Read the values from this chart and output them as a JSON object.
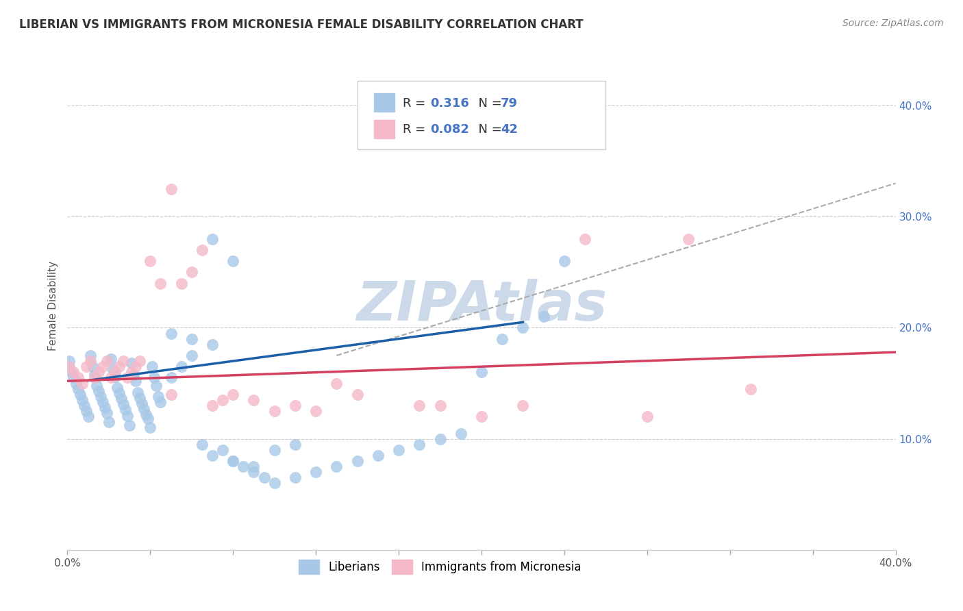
{
  "title": "LIBERIAN VS IMMIGRANTS FROM MICRONESIA FEMALE DISABILITY CORRELATION CHART",
  "source": "Source: ZipAtlas.com",
  "ylabel": "Female Disability",
  "xlim": [
    0.0,
    0.4
  ],
  "ylim": [
    0.0,
    0.44
  ],
  "yticks_right": [
    0.1,
    0.2,
    0.3,
    0.4
  ],
  "ytick_labels_right": [
    "10.0%",
    "20.0%",
    "30.0%",
    "40.0%"
  ],
  "liberians": {
    "name": "Liberians",
    "R": 0.316,
    "N": 79,
    "color": "#a8c8e8",
    "line_color": "#1a5fa8",
    "x": [
      0.001,
      0.002,
      0.003,
      0.004,
      0.005,
      0.006,
      0.007,
      0.008,
      0.009,
      0.01,
      0.011,
      0.012,
      0.013,
      0.014,
      0.015,
      0.016,
      0.017,
      0.018,
      0.019,
      0.02,
      0.021,
      0.022,
      0.023,
      0.024,
      0.025,
      0.026,
      0.027,
      0.028,
      0.029,
      0.03,
      0.031,
      0.032,
      0.033,
      0.034,
      0.035,
      0.036,
      0.037,
      0.038,
      0.039,
      0.04,
      0.041,
      0.042,
      0.043,
      0.044,
      0.045,
      0.05,
      0.055,
      0.06,
      0.065,
      0.07,
      0.075,
      0.08,
      0.085,
      0.09,
      0.095,
      0.1,
      0.11,
      0.12,
      0.13,
      0.14,
      0.15,
      0.16,
      0.17,
      0.18,
      0.19,
      0.2,
      0.21,
      0.22,
      0.23,
      0.24,
      0.05,
      0.06,
      0.07,
      0.08,
      0.09,
      0.1,
      0.11,
      0.07,
      0.08
    ],
    "y": [
      0.17,
      0.16,
      0.155,
      0.15,
      0.145,
      0.14,
      0.135,
      0.13,
      0.125,
      0.12,
      0.175,
      0.165,
      0.158,
      0.148,
      0.143,
      0.138,
      0.133,
      0.128,
      0.123,
      0.115,
      0.172,
      0.162,
      0.156,
      0.146,
      0.141,
      0.136,
      0.131,
      0.126,
      0.121,
      0.112,
      0.168,
      0.158,
      0.152,
      0.142,
      0.137,
      0.132,
      0.127,
      0.122,
      0.118,
      0.11,
      0.165,
      0.155,
      0.148,
      0.138,
      0.133,
      0.155,
      0.165,
      0.175,
      0.095,
      0.085,
      0.09,
      0.08,
      0.075,
      0.07,
      0.065,
      0.06,
      0.065,
      0.07,
      0.075,
      0.08,
      0.085,
      0.09,
      0.095,
      0.1,
      0.105,
      0.16,
      0.19,
      0.2,
      0.21,
      0.26,
      0.195,
      0.19,
      0.185,
      0.08,
      0.075,
      0.09,
      0.095,
      0.28,
      0.26
    ]
  },
  "micronesia": {
    "name": "Immigrants from Micronesia",
    "R": 0.082,
    "N": 42,
    "color": "#f5b8c8",
    "line_color": "#d44060",
    "x": [
      0.001,
      0.003,
      0.005,
      0.007,
      0.009,
      0.011,
      0.013,
      0.015,
      0.017,
      0.019,
      0.021,
      0.023,
      0.025,
      0.027,
      0.029,
      0.031,
      0.033,
      0.035,
      0.04,
      0.045,
      0.05,
      0.055,
      0.06,
      0.065,
      0.07,
      0.075,
      0.08,
      0.09,
      0.1,
      0.11,
      0.12,
      0.13,
      0.14,
      0.17,
      0.18,
      0.2,
      0.22,
      0.25,
      0.28,
      0.3,
      0.33,
      0.05
    ],
    "y": [
      0.165,
      0.16,
      0.155,
      0.15,
      0.165,
      0.17,
      0.155,
      0.16,
      0.165,
      0.17,
      0.155,
      0.16,
      0.165,
      0.17,
      0.155,
      0.16,
      0.165,
      0.17,
      0.26,
      0.24,
      0.14,
      0.24,
      0.25,
      0.27,
      0.13,
      0.135,
      0.14,
      0.135,
      0.125,
      0.13,
      0.125,
      0.15,
      0.14,
      0.13,
      0.13,
      0.12,
      0.13,
      0.28,
      0.12,
      0.28,
      0.145,
      0.325
    ]
  },
  "dashed_line": {
    "x0": 0.13,
    "y0": 0.175,
    "x1": 0.4,
    "y1": 0.33
  },
  "watermark": "ZIPAtlas",
  "watermark_color": "#ccd9e8",
  "background_color": "#ffffff",
  "grid_color": "#cccccc",
  "title_fontsize": 12,
  "source_fontsize": 10,
  "axis_label_fontsize": 11,
  "tick_fontsize": 11,
  "legend_fontsize": 13
}
